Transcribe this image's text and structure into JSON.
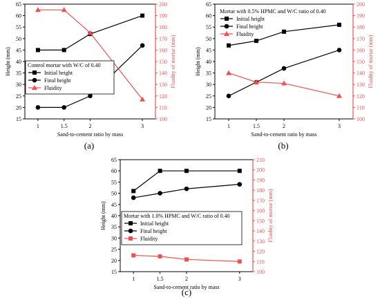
{
  "chart_data": [
    {
      "type": "line",
      "panel_label": "(a)",
      "categories": [
        "1",
        "1.5",
        "2",
        "3"
      ],
      "x": [
        1,
        1.5,
        2,
        3
      ],
      "xlabel": "Sand-to-cement ratio by mass",
      "ylabel": "Height (mm)",
      "y2label": "Fluidity of mortar (mm)",
      "xlim": [
        0.75,
        3.25
      ],
      "ylim": [
        15,
        65
      ],
      "y2lim": [
        100,
        200
      ],
      "yticks": [
        15,
        20,
        25,
        30,
        35,
        40,
        45,
        50,
        55,
        60,
        65
      ],
      "y2ticks": [
        100,
        110,
        120,
        130,
        140,
        150,
        160,
        170,
        180,
        190,
        200
      ],
      "legend_title": "Control mortar with W/C of 0.40",
      "legend_position": "middle-left",
      "series": [
        {
          "name": "Initial height",
          "axis": "left",
          "marker": "square",
          "color": "#000000",
          "values": [
            45,
            45,
            52,
            60
          ]
        },
        {
          "name": "Final height",
          "axis": "left",
          "marker": "circle",
          "color": "#000000",
          "values": [
            20,
            20,
            25,
            47
          ]
        },
        {
          "name": "Fluidity",
          "axis": "right",
          "marker": "triangle",
          "color": "#f05050",
          "values": [
            195,
            195,
            175,
            117
          ]
        }
      ]
    },
    {
      "type": "line",
      "panel_label": "(b)",
      "categories": [
        "1",
        "1.5",
        "2",
        "3"
      ],
      "x": [
        1,
        1.5,
        2,
        3
      ],
      "xlabel": "Sand-to-cement ratio by mass",
      "ylabel": "Height (mm)",
      "y2label": "Fluidity of mortar (mm)",
      "xlim": [
        0.75,
        3.25
      ],
      "ylim": [
        15,
        65
      ],
      "y2lim": [
        100,
        200
      ],
      "yticks": [
        15,
        20,
        25,
        30,
        35,
        40,
        45,
        50,
        55,
        60,
        65
      ],
      "y2ticks": [
        100,
        110,
        120,
        130,
        140,
        150,
        160,
        170,
        180,
        190,
        200
      ],
      "legend_title": "Mortar with 0.5% HPMC and W/C ratio of 0.40",
      "legend_position": "top-left",
      "series": [
        {
          "name": "Initial height",
          "axis": "left",
          "marker": "square",
          "color": "#000000",
          "values": [
            47,
            49,
            53,
            56
          ]
        },
        {
          "name": "Final height",
          "axis": "left",
          "marker": "circle",
          "color": "#000000",
          "values": [
            25,
            31,
            37,
            45
          ]
        },
        {
          "name": "Fluidity",
          "axis": "right",
          "marker": "triangle",
          "color": "#f05050",
          "values": [
            140,
            132,
            131,
            120
          ]
        }
      ]
    },
    {
      "type": "line",
      "panel_label": "(c)",
      "categories": [
        "1",
        "1.5",
        "2",
        "3"
      ],
      "x": [
        1,
        1.5,
        2,
        3
      ],
      "xlabel": "Sand-to-cement ratio by mass",
      "ylabel": "Height (mm)",
      "y2label": "Fluidity of mortar (mm)",
      "xlim": [
        0.75,
        3.25
      ],
      "ylim": [
        15,
        65
      ],
      "y2lim": [
        100,
        210
      ],
      "yticks": [
        15,
        20,
        25,
        30,
        35,
        40,
        45,
        50,
        55,
        60,
        65
      ],
      "y2ticks": [
        100,
        110,
        120,
        130,
        140,
        150,
        160,
        170,
        180,
        190,
        200,
        210
      ],
      "legend_title": "Mortar with 1.0% HPMC and W/C ratio of 0.40",
      "legend_position": "middle-left",
      "series": [
        {
          "name": "Initial height",
          "axis": "left",
          "marker": "square",
          "color": "#000000",
          "values": [
            51,
            60,
            60,
            60
          ]
        },
        {
          "name": "Final height",
          "axis": "left",
          "marker": "circle",
          "color": "#000000",
          "values": [
            48,
            50,
            52,
            54
          ]
        },
        {
          "name": "Fluidity",
          "axis": "right",
          "marker": "square",
          "color": "#f05050",
          "values": [
            116,
            115,
            112,
            110
          ]
        }
      ]
    }
  ]
}
